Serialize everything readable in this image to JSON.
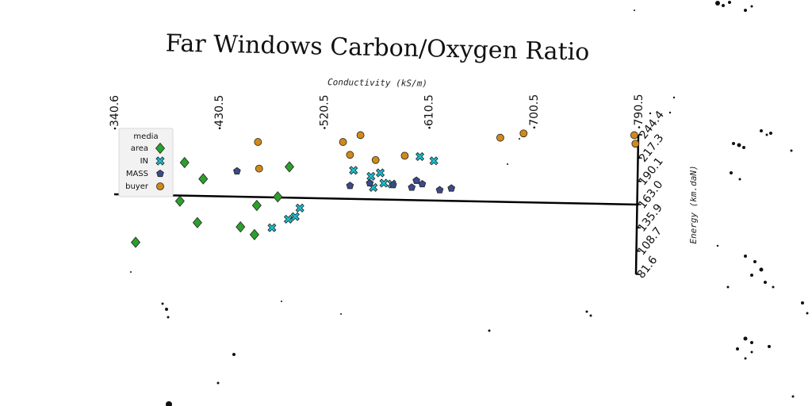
{
  "chart_data": {
    "type": "scatter",
    "title": "Far Windows Carbon/Oxygen Ratio",
    "xlabel": "Conductivity (kS/m)",
    "ylabel": "Energy (km.daN)",
    "xlim": [
      340.6,
      790.5
    ],
    "ylim": [
      81.6,
      244.4
    ],
    "x_ticks": [
      "340.6",
      "430.5",
      "520.5",
      "610.5",
      "700.5",
      "790.5"
    ],
    "y_ticks": [
      "81.6",
      "108.7",
      "135.9",
      "163.0",
      "190.1",
      "217.3",
      "244.4"
    ],
    "legend": {
      "title": "media",
      "position": "upper-left"
    },
    "series": [
      {
        "name": "area",
        "marker": "diamond",
        "color": "#2ca02c",
        "points": [
          [
            359,
            119
          ],
          [
            368,
            185
          ],
          [
            397,
            167
          ],
          [
            412,
            142
          ],
          [
            401,
            212
          ],
          [
            417,
            193
          ],
          [
            449,
            137
          ],
          [
            461,
            128
          ],
          [
            463,
            162
          ],
          [
            481,
            172
          ],
          [
            491,
            207
          ]
        ]
      },
      {
        "name": "IN",
        "marker": "x",
        "color": "#17becf",
        "points": [
          [
            476,
            136
          ],
          [
            490,
            146
          ],
          [
            496,
            149
          ],
          [
            500,
            159
          ],
          [
            546,
            203
          ],
          [
            561,
            196
          ],
          [
            563,
            183
          ],
          [
            572,
            188
          ],
          [
            569,
            200
          ],
          [
            579,
            187
          ],
          [
            603,
            219
          ],
          [
            615,
            214
          ]
        ]
      },
      {
        "name": "MASS",
        "marker": "pentagon",
        "color": "#3b4a8a",
        "points": [
          [
            446,
            202
          ],
          [
            543,
            185
          ],
          [
            560,
            188
          ],
          [
            580,
            186
          ],
          [
            596,
            183
          ],
          [
            600,
            191
          ],
          [
            605,
            187
          ],
          [
            620,
            180
          ],
          [
            630,
            182
          ]
        ]
      },
      {
        "name": "buyer",
        "marker": "circle",
        "color": "#d08a1a",
        "points": [
          [
            464,
            236
          ],
          [
            465,
            205
          ],
          [
            537,
            236
          ],
          [
            543,
            221
          ],
          [
            552,
            244
          ],
          [
            565,
            215
          ],
          [
            590,
            220
          ],
          [
            672,
            241
          ],
          [
            692,
            246
          ],
          [
            787,
            244
          ],
          [
            788,
            234
          ]
        ]
      }
    ]
  },
  "colors": {
    "axis": "#000000",
    "background": "#ffffff"
  }
}
